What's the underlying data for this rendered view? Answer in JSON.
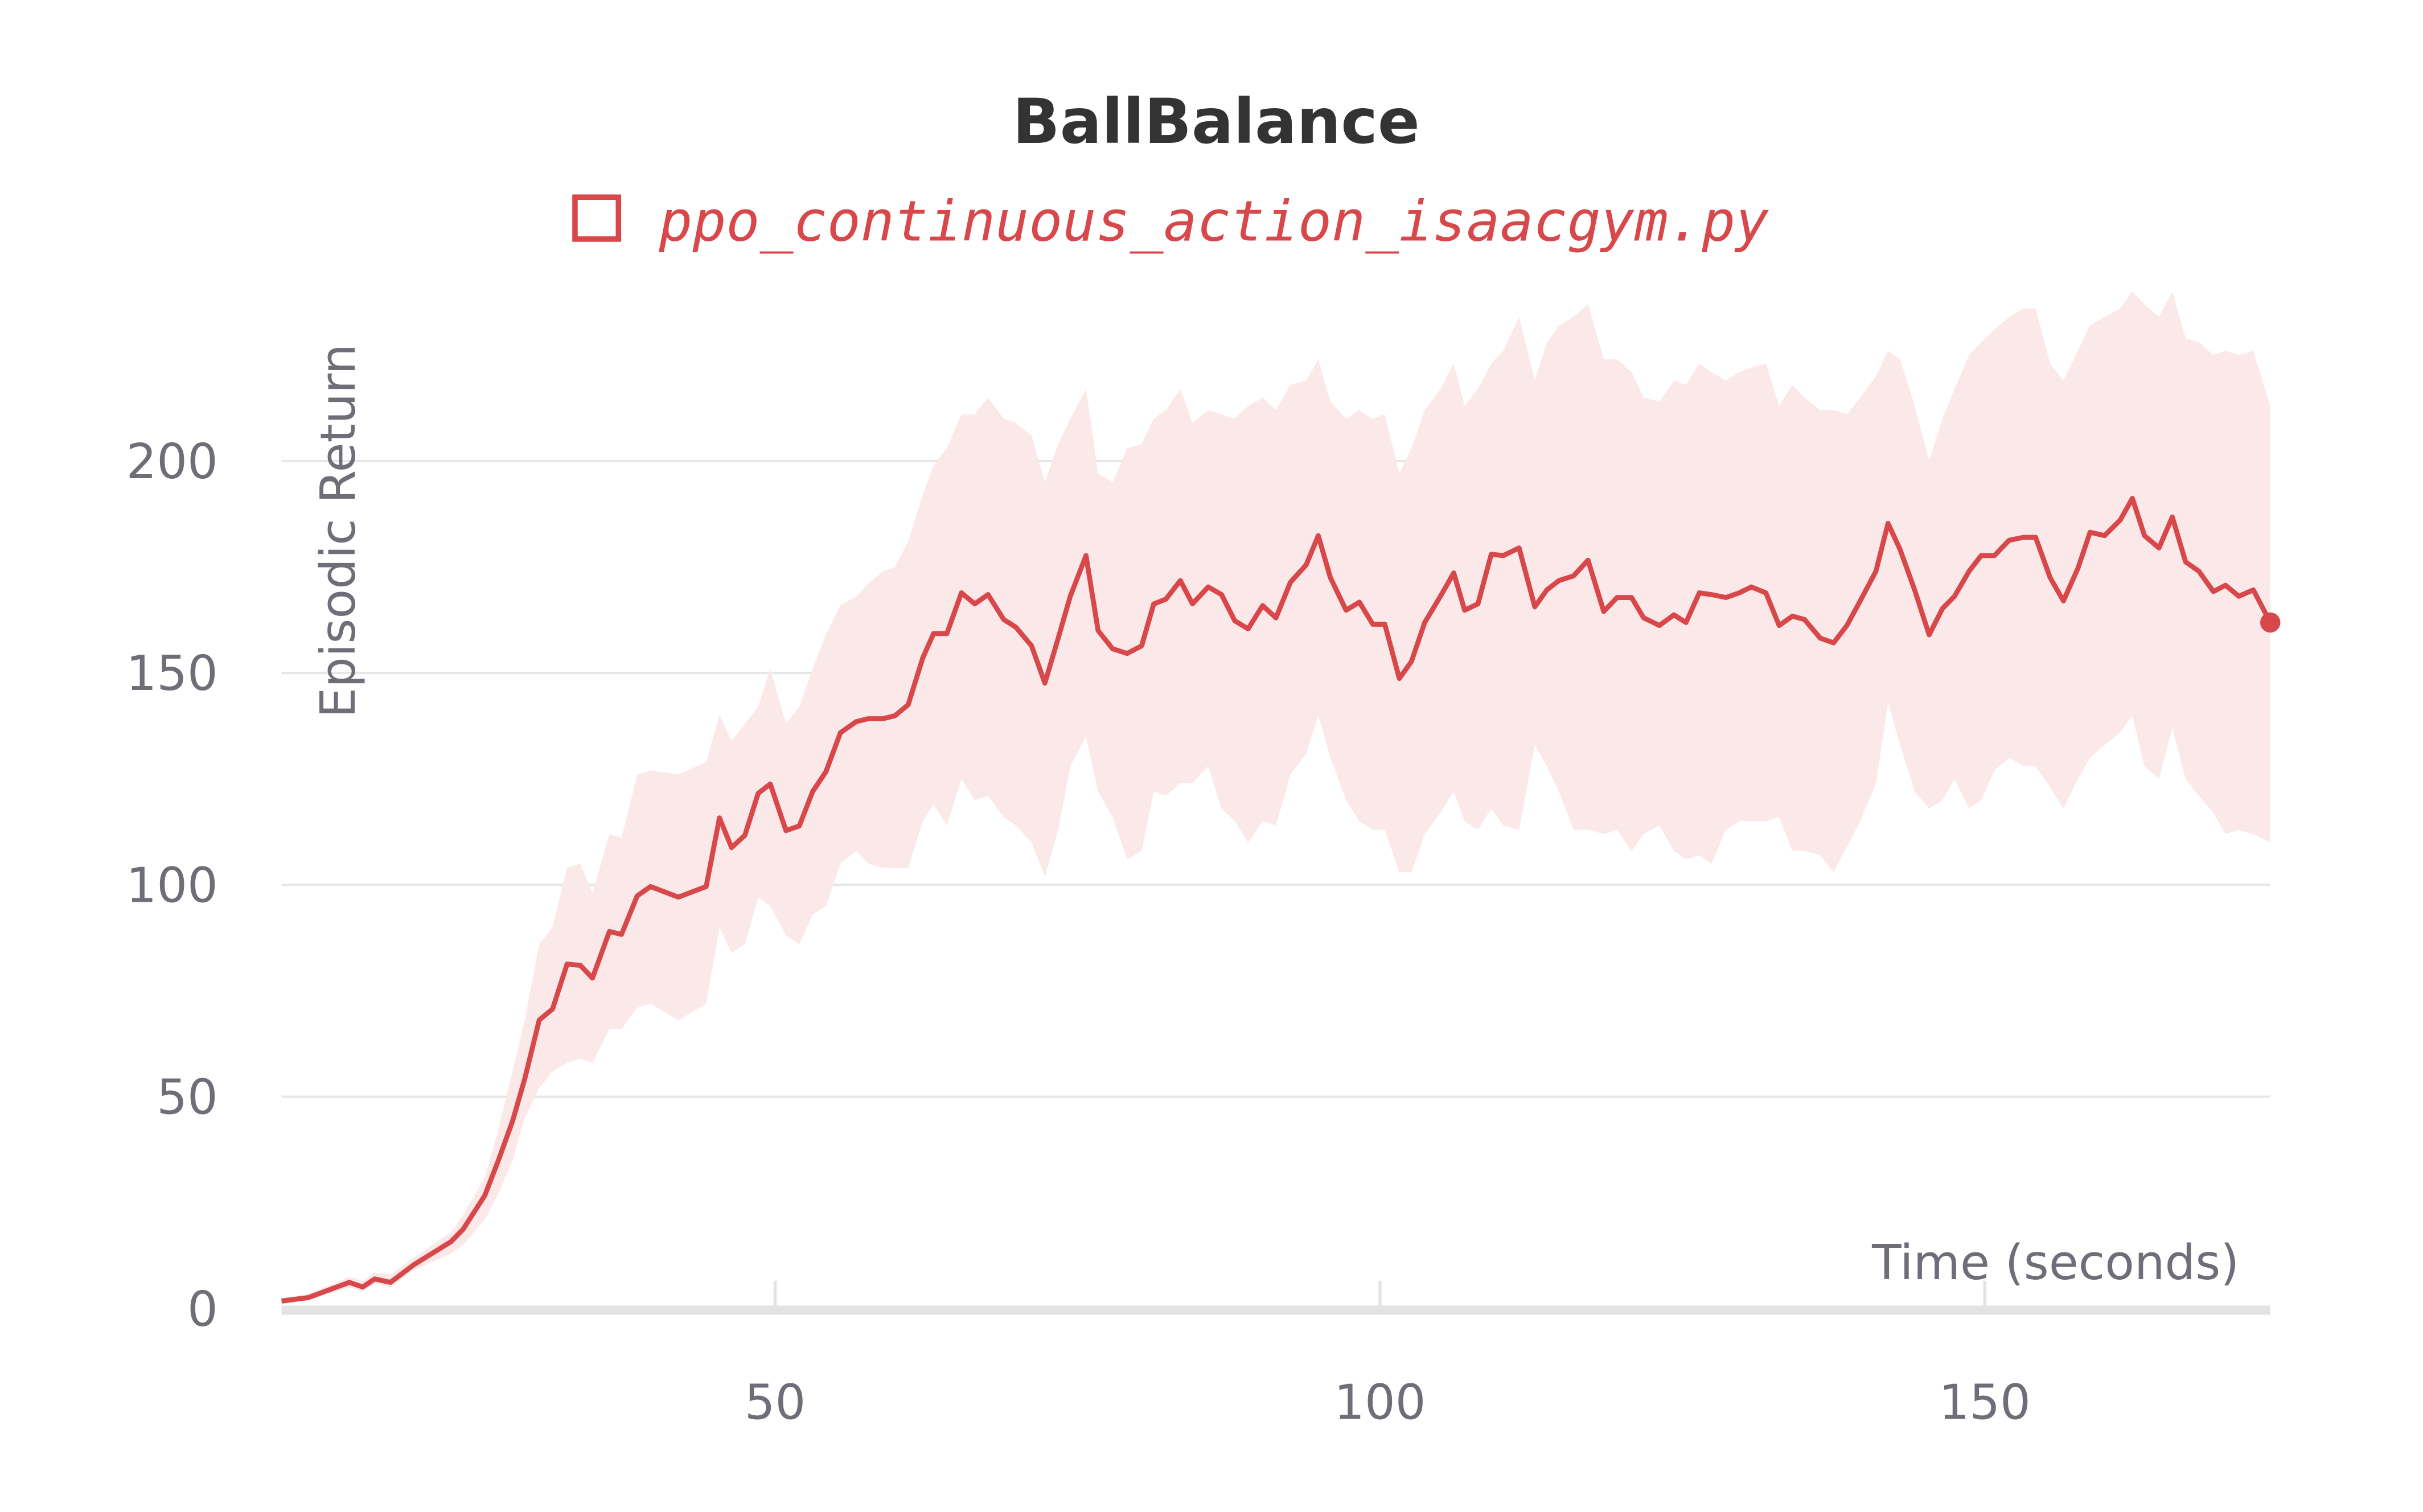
{
  "chart_data": {
    "type": "line",
    "title": "BallBalance",
    "x_label": "Time (seconds)",
    "y_label": "Episodic Return",
    "xlim": [
      9.2,
      173.6
    ],
    "ylim": [
      0,
      240
    ],
    "xticks": [
      50,
      100,
      150
    ],
    "yticks": [
      0,
      50,
      100,
      150,
      200
    ],
    "grid": true,
    "x": [
      9.2,
      11.4,
      14.8,
      15.9,
      16.9,
      18.2,
      20.1,
      23.2,
      24.2,
      26,
      27.1,
      28.3,
      29.3,
      30.5,
      31.6,
      32.8,
      33.9,
      34.9,
      36.3,
      37.3,
      38.6,
      39.7,
      42,
      44.3,
      45.4,
      46.4,
      47.5,
      48.6,
      49.6,
      50.9,
      52,
      53.1,
      54.2,
      55.4,
      56.7,
      57.7,
      58.9,
      59.9,
      61,
      62.2,
      63.1,
      64.2,
      65.4,
      66.5,
      67.6,
      68.9,
      69.9,
      71.2,
      72.3,
      73.4,
      74.4,
      75.7,
      76.7,
      77.9,
      79.1,
      80.3,
      81.3,
      82.3,
      83.5,
      84.5,
      85.8,
      86.9,
      88,
      89.1,
      90.3,
      91.4,
      92.6,
      93.9,
      94.9,
      95.9,
      97.2,
      98.3,
      99.4,
      100.4,
      101.6,
      102.6,
      103.7,
      105,
      106.1,
      107,
      108.1,
      109.2,
      110.2,
      111.5,
      112.8,
      113.8,
      114.8,
      116,
      117.2,
      118.5,
      119.6,
      120.8,
      121.8,
      123.1,
      124.3,
      125.3,
      126.4,
      127.4,
      128.6,
      129.7,
      130.7,
      131.9,
      133,
      134.1,
      135.1,
      136.4,
      137.5,
      138.6,
      139.7,
      141,
      142,
      143,
      144.2,
      145.4,
      146.5,
      147.5,
      148.7,
      149.7,
      150.8,
      152,
      153.2,
      154.2,
      155.4,
      156.5,
      157.7,
      158.7,
      159.9,
      161.2,
      162.2,
      163.2,
      164.4,
      165.5,
      166.6,
      167.7,
      168.9,
      169.9,
      171,
      172.2,
      173.6
    ],
    "series": [
      {
        "name": "ppo_continuous_action_isaacgym.py",
        "color": "#d8474a",
        "band_color": "#fbe8e9",
        "values": [
          1.8,
          2.6,
          6.2,
          5.1,
          7,
          6.2,
          10.3,
          15.8,
          18.7,
          26.7,
          34.8,
          44.3,
          54.2,
          68.1,
          70.7,
          81.3,
          81,
          78,
          89,
          88.3,
          97.4,
          99.6,
          97.1,
          99.6,
          115.8,
          108.8,
          111.7,
          121.6,
          123.8,
          112.8,
          113.9,
          122,
          126.7,
          135.9,
          138.5,
          139.2,
          139.2,
          139.9,
          142.5,
          153.5,
          159.3,
          159.3,
          168.9,
          166.3,
          168.5,
          162.6,
          160.8,
          156.4,
          147.6,
          158.2,
          168.1,
          177.7,
          160,
          155.7,
          154.6,
          156.4,
          166.3,
          167.4,
          171.8,
          166.3,
          170.3,
          168.5,
          162.3,
          160.4,
          165.9,
          163,
          171.4,
          175.5,
          182.4,
          172.5,
          164.8,
          166.7,
          161.5,
          161.5,
          148.7,
          152.7,
          161.9,
          168.1,
          173.6,
          164.8,
          166.3,
          178,
          177.7,
          179.5,
          165.6,
          169.6,
          171.8,
          172.9,
          176.6,
          164.5,
          167.8,
          167.8,
          163,
          161.2,
          163.7,
          161.9,
          168.9,
          168.5,
          167.8,
          168.9,
          170.3,
          168.9,
          161.2,
          163.4,
          162.6,
          158.2,
          157.1,
          161.2,
          167,
          174,
          185.3,
          179.1,
          169.6,
          159,
          165.2,
          168.1,
          174,
          177.7,
          177.7,
          181.3,
          182,
          182,
          172.5,
          167,
          174.7,
          183.2,
          182.4,
          186.1,
          191.2,
          182.4,
          179.5,
          186.8,
          176.2,
          174,
          169.2,
          170.7,
          168.1,
          169.6,
          161.9
        ],
        "upper": [
          2.5,
          3.5,
          7.5,
          6.5,
          8.5,
          8,
          12,
          18,
          22,
          31,
          42,
          56,
          68,
          86,
          90,
          104,
          105,
          98,
          112,
          111,
          126,
          127,
          126,
          129,
          140,
          134,
          138,
          142,
          151,
          138,
          142,
          151,
          159,
          166,
          168,
          171,
          174,
          175,
          181,
          192,
          199,
          203,
          211,
          211,
          215,
          210,
          209,
          206,
          195,
          204,
          210,
          217,
          197,
          195,
          203,
          204,
          210,
          212,
          217,
          209,
          212,
          211,
          210,
          213,
          215,
          212,
          218,
          219,
          224,
          214,
          210,
          212,
          210,
          211,
          197,
          203,
          212,
          217,
          223,
          213,
          217,
          223,
          226,
          234,
          219,
          228,
          232,
          234,
          237,
          224,
          224,
          221,
          215,
          214,
          219,
          218,
          223,
          221,
          219,
          221,
          222,
          223,
          213,
          218,
          215,
          212,
          212,
          211,
          215,
          220,
          226,
          224,
          213,
          200,
          210,
          217,
          225,
          228,
          231,
          234,
          236,
          236,
          223,
          219,
          226,
          232,
          234,
          236,
          240,
          237,
          234,
          240,
          229,
          228,
          225,
          226,
          225,
          226,
          213
        ],
        "lower": [
          1,
          2,
          5,
          4,
          6,
          5,
          9,
          13,
          15,
          21,
          27,
          35,
          45,
          52,
          56,
          58,
          59,
          58,
          66,
          66,
          71,
          72,
          68,
          72,
          90,
          84,
          86,
          97,
          95,
          88,
          86,
          93,
          95,
          105,
          108,
          105,
          104,
          104,
          104,
          115,
          119,
          114,
          125,
          120,
          121,
          116,
          114,
          110,
          102,
          113,
          128,
          135,
          122,
          116,
          106,
          108,
          122,
          121,
          124,
          124,
          128,
          118,
          115,
          110,
          115,
          114,
          126,
          131,
          140,
          130,
          120,
          115,
          113,
          113,
          103,
          103,
          112,
          117,
          122,
          115,
          113,
          118,
          114,
          113,
          133,
          128,
          122,
          113,
          113,
          112,
          113,
          108,
          112,
          114,
          108,
          106,
          107,
          105,
          113,
          115,
          115,
          115,
          116,
          108,
          108,
          107,
          103,
          109,
          115,
          124,
          143,
          133,
          122,
          118,
          120,
          125,
          118,
          120,
          127,
          130,
          128,
          128,
          123,
          118,
          125,
          130,
          133,
          136,
          140,
          128,
          125,
          137,
          125,
          121,
          117,
          112,
          113,
          112,
          110
        ]
      }
    ]
  }
}
